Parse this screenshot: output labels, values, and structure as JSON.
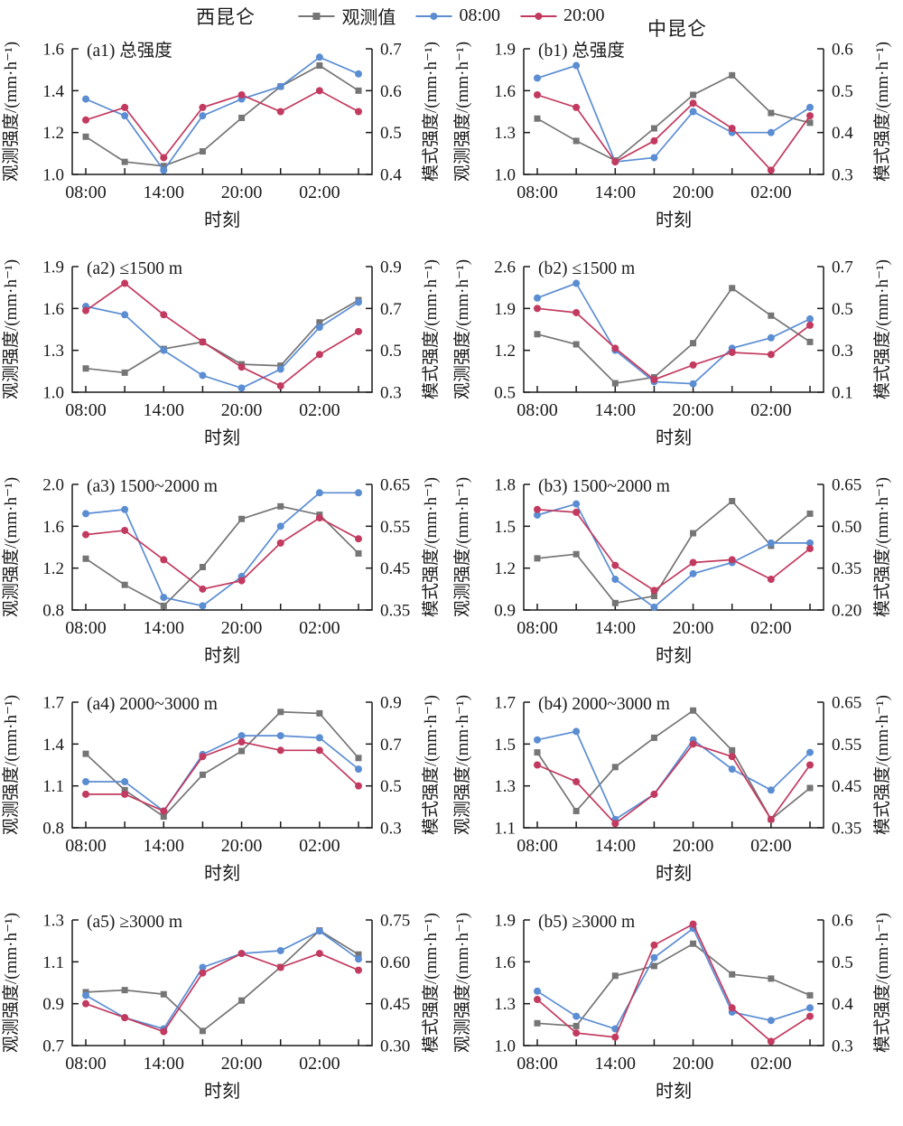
{
  "header": {
    "left_title": "西昆仑",
    "right_title": "中昆仑"
  },
  "legend": {
    "items": [
      {
        "label": "观测值",
        "color": "#757575",
        "marker": "square"
      },
      {
        "label": "08:00",
        "color": "#5b8dd3",
        "marker": "circle"
      },
      {
        "label": "20:00",
        "color": "#c23a5f",
        "marker": "circle"
      }
    ]
  },
  "chart_data": {
    "type": "line",
    "axis_color": "#1a1a1a",
    "axes_labels": {
      "left": "观测强度/(mm·h⁻¹)",
      "right": "模式强度/(mm·h⁻¹)",
      "x": "时刻"
    },
    "x_tick_labels": [
      "08:00",
      "14:00",
      "20:00",
      "02:00"
    ],
    "x_tick_label_point_indices": [
      0,
      2,
      4,
      6
    ],
    "points_per_series": 8,
    "panels": [
      {
        "id": "a1",
        "label": "(a1) 总强度",
        "left_axis": {
          "ticks": [
            "1.0",
            "1.2",
            "1.4",
            "1.6"
          ]
        },
        "right_axis": {
          "ticks": [
            "0.4",
            "0.5",
            "0.6",
            "0.7"
          ]
        },
        "series": [
          {
            "name": "观测值",
            "axis": "left",
            "marker": "square",
            "color": "#757575",
            "values": [
              1.18,
              1.06,
              1.04,
              1.11,
              1.27,
              1.42,
              1.52,
              1.4
            ]
          },
          {
            "name": "08:00",
            "axis": "right",
            "marker": "circle",
            "color": "#5b8dd3",
            "values": [
              0.58,
              0.54,
              0.41,
              0.54,
              0.58,
              0.61,
              0.68,
              0.64
            ]
          },
          {
            "name": "20:00",
            "axis": "right",
            "marker": "circle",
            "color": "#c23a5f",
            "values": [
              0.53,
              0.56,
              0.44,
              0.56,
              0.59,
              0.55,
              0.6,
              0.55
            ]
          }
        ]
      },
      {
        "id": "b1",
        "label": "(b1) 总强度",
        "left_axis": {
          "ticks": [
            "1.0",
            "1.3",
            "1.6",
            "1.9"
          ]
        },
        "right_axis": {
          "ticks": [
            "0.3",
            "0.4",
            "0.5",
            "0.6"
          ]
        },
        "series": [
          {
            "name": "观测值",
            "axis": "left",
            "marker": "square",
            "color": "#757575",
            "values": [
              1.4,
              1.24,
              1.1,
              1.33,
              1.57,
              1.71,
              1.44,
              1.37
            ]
          },
          {
            "name": "08:00",
            "axis": "right",
            "marker": "circle",
            "color": "#5b8dd3",
            "values": [
              0.53,
              0.56,
              0.33,
              0.34,
              0.45,
              0.4,
              0.4,
              0.46
            ]
          },
          {
            "name": "20:00",
            "axis": "right",
            "marker": "circle",
            "color": "#c23a5f",
            "values": [
              0.49,
              0.46,
              0.33,
              0.38,
              0.47,
              0.41,
              0.31,
              0.44
            ]
          }
        ]
      },
      {
        "id": "a2",
        "label": "(a2) ≤1500 m",
        "left_axis": {
          "ticks": [
            "1.0",
            "1.3",
            "1.6",
            "1.9"
          ]
        },
        "right_axis": {
          "ticks": [
            "0.3",
            "0.5",
            "0.7",
            "0.9"
          ]
        },
        "series": [
          {
            "name": "观测值",
            "axis": "left",
            "marker": "square",
            "color": "#757575",
            "values": [
              1.17,
              1.14,
              1.31,
              1.36,
              1.2,
              1.19,
              1.5,
              1.66
            ]
          },
          {
            "name": "08:00",
            "axis": "right",
            "marker": "circle",
            "color": "#5b8dd3",
            "values": [
              0.71,
              0.67,
              0.5,
              0.38,
              0.32,
              0.41,
              0.61,
              0.73
            ]
          },
          {
            "name": "20:00",
            "axis": "right",
            "marker": "circle",
            "color": "#c23a5f",
            "values": [
              0.69,
              0.82,
              0.67,
              0.54,
              0.42,
              0.33,
              0.48,
              0.59
            ]
          }
        ]
      },
      {
        "id": "b2",
        "label": "(b2) ≤1500 m",
        "left_axis": {
          "ticks": [
            "0.5",
            "1.2",
            "1.9",
            "2.6"
          ]
        },
        "right_axis": {
          "ticks": [
            "0.1",
            "0.3",
            "0.5",
            "0.7"
          ]
        },
        "series": [
          {
            "name": "观测值",
            "axis": "left",
            "marker": "square",
            "color": "#757575",
            "values": [
              1.47,
              1.3,
              0.65,
              0.75,
              1.32,
              2.24,
              1.78,
              1.34
            ]
          },
          {
            "name": "08:00",
            "axis": "right",
            "marker": "circle",
            "color": "#5b8dd3",
            "values": [
              0.55,
              0.62,
              0.3,
              0.15,
              0.14,
              0.31,
              0.36,
              0.45
            ]
          },
          {
            "name": "20:00",
            "axis": "right",
            "marker": "circle",
            "color": "#c23a5f",
            "values": [
              0.5,
              0.48,
              0.31,
              0.16,
              0.23,
              0.29,
              0.28,
              0.42
            ]
          }
        ]
      },
      {
        "id": "a3",
        "label": "(a3) 1500~2000 m",
        "left_axis": {
          "ticks": [
            "0.8",
            "1.2",
            "1.6",
            "2.0"
          ]
        },
        "right_axis": {
          "ticks": [
            "0.35",
            "0.45",
            "0.55",
            "0.65"
          ]
        },
        "series": [
          {
            "name": "观测值",
            "axis": "left",
            "marker": "square",
            "color": "#757575",
            "values": [
              1.29,
              1.04,
              0.84,
              1.21,
              1.67,
              1.79,
              1.71,
              1.34
            ]
          },
          {
            "name": "08:00",
            "axis": "right",
            "marker": "circle",
            "color": "#5b8dd3",
            "values": [
              0.58,
              0.59,
              0.38,
              0.36,
              0.43,
              0.55,
              0.63,
              0.63
            ]
          },
          {
            "name": "20:00",
            "axis": "right",
            "marker": "circle",
            "color": "#c23a5f",
            "values": [
              0.53,
              0.54,
              0.47,
              0.4,
              0.42,
              0.51,
              0.57,
              0.52
            ]
          }
        ]
      },
      {
        "id": "b3",
        "label": "(b3) 1500~2000 m",
        "left_axis": {
          "ticks": [
            "0.9",
            "1.2",
            "1.5",
            "1.8"
          ]
        },
        "right_axis": {
          "ticks": [
            "0.20",
            "0.35",
            "0.50",
            "0.65"
          ]
        },
        "series": [
          {
            "name": "观测值",
            "axis": "left",
            "marker": "square",
            "color": "#757575",
            "values": [
              1.27,
              1.3,
              0.95,
              1.0,
              1.45,
              1.68,
              1.36,
              1.59
            ]
          },
          {
            "name": "08:00",
            "axis": "right",
            "marker": "circle",
            "color": "#5b8dd3",
            "values": [
              0.54,
              0.58,
              0.31,
              0.21,
              0.33,
              0.37,
              0.44,
              0.44
            ]
          },
          {
            "name": "20:00",
            "axis": "right",
            "marker": "circle",
            "color": "#c23a5f",
            "values": [
              0.56,
              0.55,
              0.36,
              0.27,
              0.37,
              0.38,
              0.31,
              0.42
            ]
          }
        ]
      },
      {
        "id": "a4",
        "label": "(a4) 2000~3000 m",
        "left_axis": {
          "ticks": [
            "0.8",
            "1.1",
            "1.4",
            "1.7"
          ]
        },
        "right_axis": {
          "ticks": [
            "0.3",
            "0.5",
            "0.7",
            "0.9"
          ]
        },
        "series": [
          {
            "name": "观测值",
            "axis": "left",
            "marker": "square",
            "color": "#757575",
            "values": [
              1.33,
              1.07,
              0.88,
              1.18,
              1.35,
              1.63,
              1.62,
              1.3
            ]
          },
          {
            "name": "08:00",
            "axis": "right",
            "marker": "circle",
            "color": "#5b8dd3",
            "values": [
              0.52,
              0.52,
              0.38,
              0.65,
              0.74,
              0.74,
              0.73,
              0.58
            ]
          },
          {
            "name": "20:00",
            "axis": "right",
            "marker": "circle",
            "color": "#c23a5f",
            "values": [
              0.46,
              0.46,
              0.38,
              0.64,
              0.71,
              0.67,
              0.67,
              0.5
            ]
          }
        ]
      },
      {
        "id": "b4",
        "label": "(b4) 2000~3000 m",
        "left_axis": {
          "ticks": [
            "1.1",
            "1.3",
            "1.5",
            "1.7"
          ]
        },
        "right_axis": {
          "ticks": [
            "0.35",
            "0.45",
            "0.55",
            "0.65"
          ]
        },
        "series": [
          {
            "name": "观测值",
            "axis": "left",
            "marker": "square",
            "color": "#757575",
            "values": [
              1.46,
              1.18,
              1.39,
              1.53,
              1.66,
              1.47,
              1.14,
              1.29
            ]
          },
          {
            "name": "08:00",
            "axis": "right",
            "marker": "circle",
            "color": "#5b8dd3",
            "values": [
              0.56,
              0.58,
              0.37,
              0.43,
              0.56,
              0.49,
              0.44,
              0.53
            ]
          },
          {
            "name": "20:00",
            "axis": "right",
            "marker": "circle",
            "color": "#c23a5f",
            "values": [
              0.5,
              0.46,
              0.36,
              0.43,
              0.55,
              0.52,
              0.37,
              0.5
            ]
          }
        ]
      },
      {
        "id": "a5",
        "label": "(a5) ≥3000 m",
        "left_axis": {
          "ticks": [
            "0.7",
            "0.9",
            "1.1",
            "1.3"
          ]
        },
        "right_axis": {
          "ticks": [
            "0.30",
            "0.45",
            "0.60",
            "0.75"
          ]
        },
        "series": [
          {
            "name": "观测值",
            "axis": "left",
            "marker": "square",
            "color": "#757575",
            "values": [
              0.955,
              0.965,
              0.945,
              0.77,
              0.915,
              1.075,
              1.25,
              1.135
            ]
          },
          {
            "name": "08:00",
            "axis": "right",
            "marker": "circle",
            "color": "#5b8dd3",
            "values": [
              0.48,
              0.4,
              0.36,
              0.58,
              0.63,
              0.64,
              0.71,
              0.61
            ]
          },
          {
            "name": "20:00",
            "axis": "right",
            "marker": "circle",
            "color": "#c23a5f",
            "values": [
              0.45,
              0.4,
              0.35,
              0.56,
              0.63,
              0.58,
              0.63,
              0.57
            ]
          }
        ]
      },
      {
        "id": "b5",
        "label": "(b5) ≥3000 m",
        "left_axis": {
          "ticks": [
            "1.0",
            "1.3",
            "1.6",
            "1.9"
          ]
        },
        "right_axis": {
          "ticks": [
            "0.3",
            "0.4",
            "0.5",
            "0.6"
          ]
        },
        "series": [
          {
            "name": "观测值",
            "axis": "left",
            "marker": "square",
            "color": "#757575",
            "values": [
              1.16,
              1.14,
              1.5,
              1.57,
              1.73,
              1.51,
              1.48,
              1.36
            ]
          },
          {
            "name": "08:00",
            "axis": "right",
            "marker": "circle",
            "color": "#5b8dd3",
            "values": [
              0.43,
              0.37,
              0.34,
              0.51,
              0.58,
              0.38,
              0.36,
              0.39
            ]
          },
          {
            "name": "20:00",
            "axis": "right",
            "marker": "circle",
            "color": "#c23a5f",
            "values": [
              0.41,
              0.33,
              0.32,
              0.54,
              0.59,
              0.39,
              0.31,
              0.37
            ]
          }
        ]
      }
    ]
  }
}
